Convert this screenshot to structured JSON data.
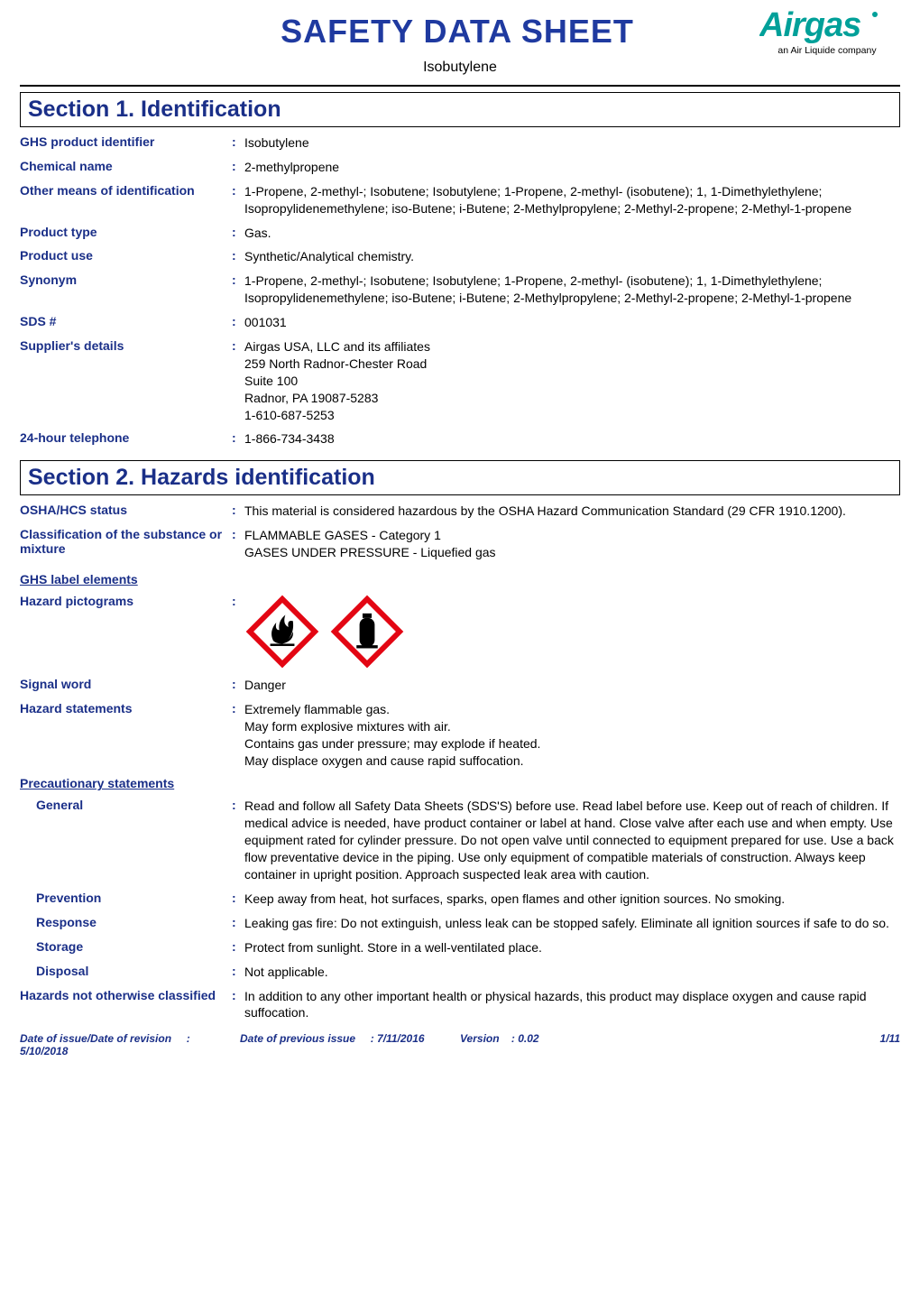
{
  "colors": {
    "title": "#1f3aa0",
    "accent": "#1a2f88",
    "logo": "#00a099",
    "black": "#000000",
    "red": "#e30613",
    "white": "#ffffff",
    "rule": "#000000"
  },
  "masthead": {
    "title": "SAFETY DATA SHEET",
    "subtitle": "Isobutylene",
    "logo_word": "Airgas",
    "logo_tag": "an Air Liquide company"
  },
  "sections": {
    "s1": {
      "heading": "Section 1. Identification",
      "rows": [
        {
          "label": "GHS product identifier",
          "value": "Isobutylene"
        },
        {
          "label": "Chemical name",
          "value": "2-methylpropene"
        },
        {
          "label": "Other means of identification",
          "value": "1-Propene, 2-methyl-; Isobutene; Isobutylene; 1-Propene, 2-methyl- (isobutene); 1, 1-Dimethylethylene; Isopropylidenemethylene; iso-Butene; i-Butene; 2-Methylpropylene; 2-Methyl-2-propene; 2-Methyl-1-propene"
        },
        {
          "label": "Product type",
          "value": "Gas."
        },
        {
          "label": "Product use",
          "value": "Synthetic/Analytical chemistry."
        },
        {
          "label": "Synonym",
          "value": "1-Propene, 2-methyl-; Isobutene; Isobutylene; 1-Propene, 2-methyl- (isobutene); 1, 1-Dimethylethylene; Isopropylidenemethylene; iso-Butene; i-Butene; 2-Methylpropylene; 2-Methyl-2-propene; 2-Methyl-1-propene"
        },
        {
          "label": "SDS #",
          "value": "001031"
        },
        {
          "label": "Supplier's details",
          "value": "Airgas USA, LLC and its affiliates\n259 North Radnor-Chester Road\nSuite 100\nRadnor, PA 19087-5283\n1-610-687-5253"
        },
        {
          "label": "24-hour telephone",
          "value": "1-866-734-3438"
        }
      ]
    },
    "s2": {
      "heading": "Section 2. Hazards identification",
      "rows_a": [
        {
          "label": "OSHA/HCS status",
          "value": "This material is considered hazardous by the OSHA Hazard Communication Standard (29 CFR 1910.1200)."
        },
        {
          "label": "Classification of the substance or mixture",
          "value": "FLAMMABLE GASES - Category 1\nGASES UNDER PRESSURE - Liquefied gas"
        }
      ],
      "ghs_heading": "GHS label elements",
      "pictograms_label": "Hazard pictograms",
      "rows_b": [
        {
          "label": "Signal word",
          "value": "Danger"
        },
        {
          "label": "Hazard statements",
          "value": "Extremely flammable gas.\nMay form explosive mixtures with air.\nContains gas under pressure; may explode if heated.\nMay displace oxygen and cause rapid suffocation."
        }
      ],
      "precaution_heading": "Precautionary statements",
      "rows_c": [
        {
          "label": "General",
          "value": "Read and follow all Safety Data Sheets (SDS'S) before use.  Read label before use.  Keep out of reach of children.  If medical advice is needed, have product container or label at hand.  Close valve after each use and when empty.  Use equipment rated for cylinder pressure.  Do not open valve until connected to equipment prepared for use.  Use a back flow preventative device in the piping.  Use only equipment of compatible materials of construction.  Always keep container in upright position.  Approach suspected leak area with caution."
        },
        {
          "label": "Prevention",
          "value": "Keep away from heat, hot surfaces, sparks, open flames and other ignition sources. No smoking."
        },
        {
          "label": "Response",
          "value": "Leaking gas fire: Do not extinguish, unless leak can be stopped safely.  Eliminate all ignition sources if safe to do so."
        },
        {
          "label": "Storage",
          "value": "Protect from sunlight.  Store in a well-ventilated place."
        },
        {
          "label": "Disposal",
          "value": "Not applicable."
        }
      ],
      "hazards_other": {
        "label": "Hazards not otherwise classified",
        "value": "In addition to any other important health or physical hazards, this product may displace oxygen and cause rapid suffocation."
      }
    }
  },
  "footer": {
    "issue_label": "Date of issue/Date of revision",
    "issue_value": ": 5/10/2018",
    "prev_label": "Date of previous issue",
    "prev_value": ": 7/11/2016",
    "version_label": "Version",
    "version_value": ": 0.02",
    "page": "1/11"
  }
}
